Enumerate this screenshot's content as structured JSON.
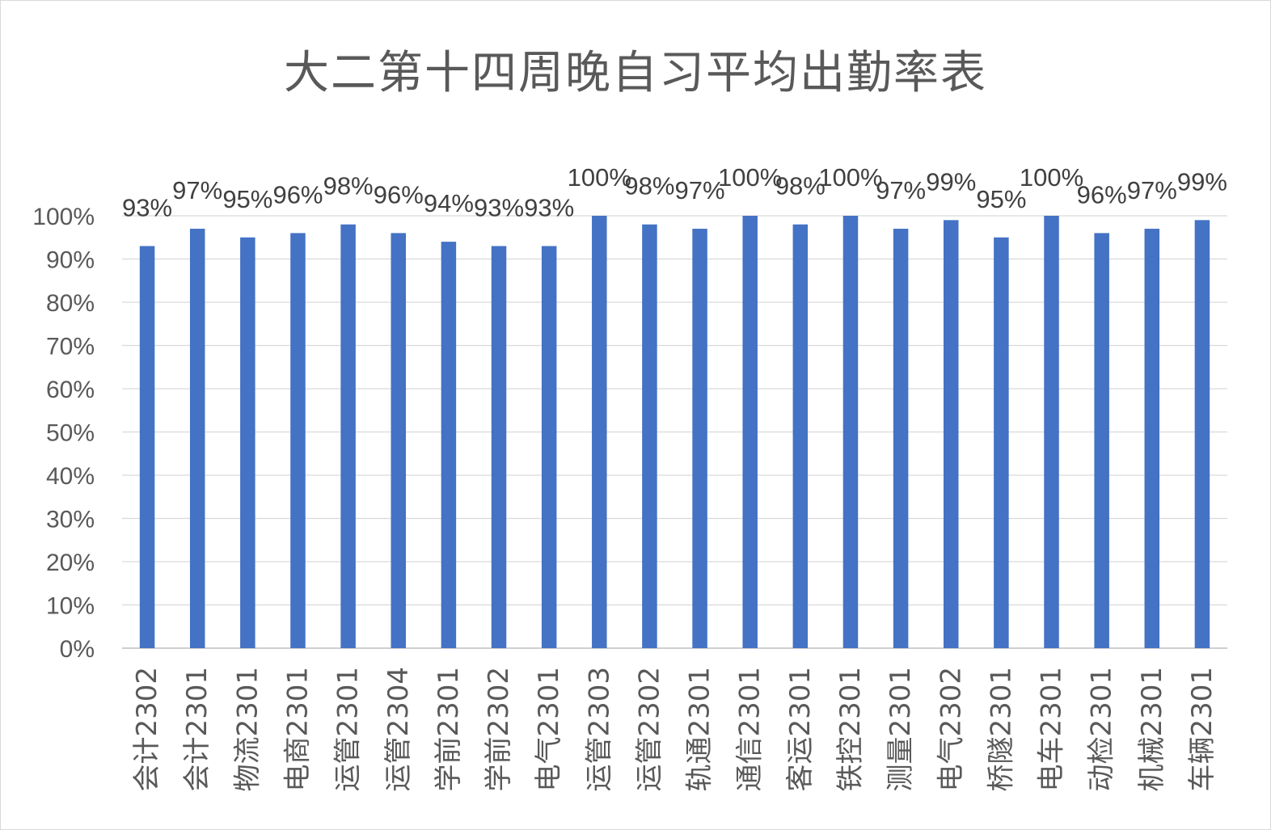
{
  "chart_data": {
    "type": "bar",
    "title": "大二第十四周晚自习平均出勤率表",
    "xlabel": "",
    "ylabel": "",
    "ylim": [
      0,
      100
    ],
    "yticks": [
      "0%",
      "10%",
      "20%",
      "30%",
      "40%",
      "50%",
      "60%",
      "70%",
      "80%",
      "90%",
      "100%"
    ],
    "grid": true,
    "legend": "none",
    "bar_color": "#4472C4",
    "categories": [
      "会计2302",
      "会计2301",
      "物流2301",
      "电商2301",
      "运管2301",
      "运管2304",
      "学前2301",
      "学前2302",
      "电气2301",
      "运管2303",
      "运管2302",
      "轨通2301",
      "通信2301",
      "客运2301",
      "铁控2301",
      "测量2301",
      "电气2302",
      "桥隧2301",
      "电车2301",
      "动检2301",
      "机械2301",
      "车辆2301"
    ],
    "values": [
      93,
      97,
      95,
      96,
      98,
      96,
      94,
      93,
      93,
      100,
      98,
      97,
      100,
      98,
      100,
      97,
      99,
      95,
      100,
      96,
      97,
      99
    ],
    "data_labels": [
      "93%",
      "97%",
      "95%",
      "96%",
      "98%",
      "96%",
      "94%",
      "93%",
      "93%",
      "100%",
      "98%",
      "97%",
      "100%",
      "98%",
      "100%",
      "97%",
      "99%",
      "95%",
      "100%",
      "96%",
      "97%",
      "99%"
    ]
  }
}
